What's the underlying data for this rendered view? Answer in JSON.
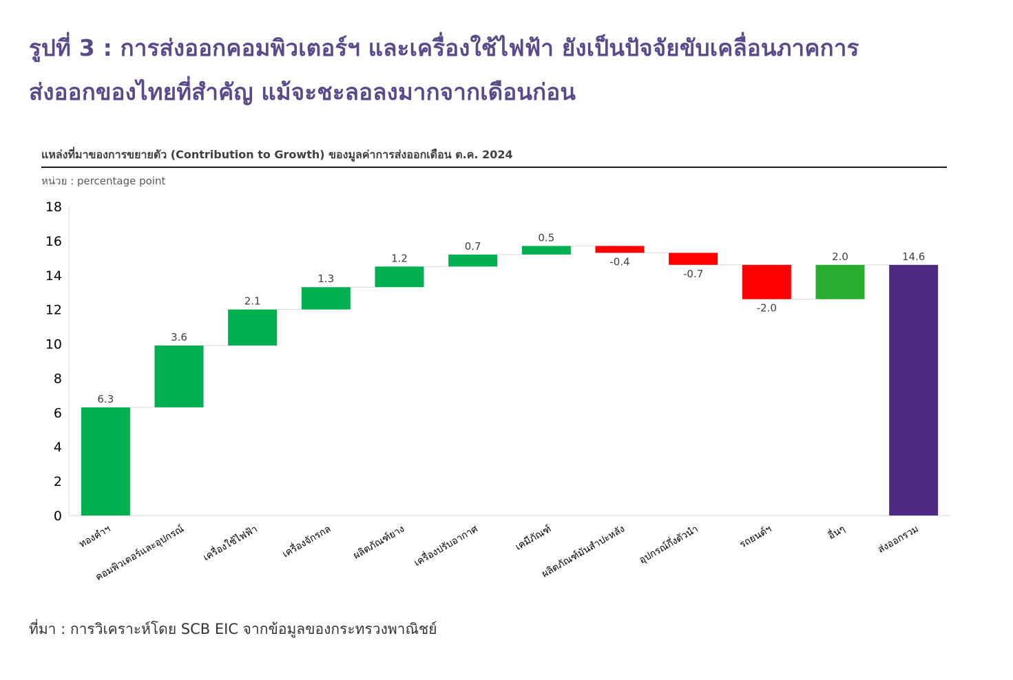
{
  "headline": {
    "line1": "รูปที่ 3 : การส่งออกคอมพิวเตอร์ฯ และเครื่องใช้ไฟฟ้า ยังเป็นปัจจัยขับเคลื่อนภาคการ",
    "line2": "ส่งออกของไทยที่สำคัญ แม้จะชะลอลงมากจากเดือนก่อน"
  },
  "chart_title": "แหล่งที่มาของการขยายตัว (Contribution to Growth) ของมูลค่าการส่งออกเดือน ต.ค. 2024",
  "unit_label": "หน่วย : percentage point",
  "source": "ที่มา : การวิเคราะห์โดย SCB EIC จากข้อมูลของกระทรวงพาณิชย์",
  "colors": {
    "positive": "#00b050",
    "positive_alt": "#27ae2f",
    "negative": "#ff0000",
    "total": "#4e2a82"
  },
  "chart_data": {
    "type": "waterfall",
    "ylim": [
      0,
      18
    ],
    "yticks": [
      0,
      2,
      4,
      6,
      8,
      10,
      12,
      14,
      16,
      18
    ],
    "categories": [
      "ทองคำฯ",
      "คอมพิวเตอร์และอุปกรณ์",
      "เครื่องใช้ไฟฟ้า",
      "เครื่องจักรกล",
      "ผลิตภัณฑ์ยาง",
      "เครื่องปรับอากาศ",
      "เคมีภัณฑ์",
      "ผลิตภัณฑ์มันสำปะหลัง",
      "อุปกรณ์กึ่งตัวนำ",
      "รถยนต์ฯ",
      "อื่นๆ",
      "ส่งออกรวม"
    ],
    "values": [
      6.3,
      3.6,
      2.1,
      1.3,
      1.2,
      0.7,
      0.5,
      -0.4,
      -0.7,
      -2.0,
      2.0,
      14.6
    ],
    "labels": [
      "6.3",
      "3.6",
      "2.1",
      "1.3",
      "1.2",
      "0.7",
      "0.5",
      "-0.4",
      "-0.7",
      "-2.0",
      "2.0",
      "14.6"
    ],
    "kinds": [
      "pos",
      "pos",
      "pos",
      "pos",
      "pos",
      "pos",
      "pos",
      "neg",
      "neg",
      "neg",
      "pos2",
      "total"
    ]
  }
}
